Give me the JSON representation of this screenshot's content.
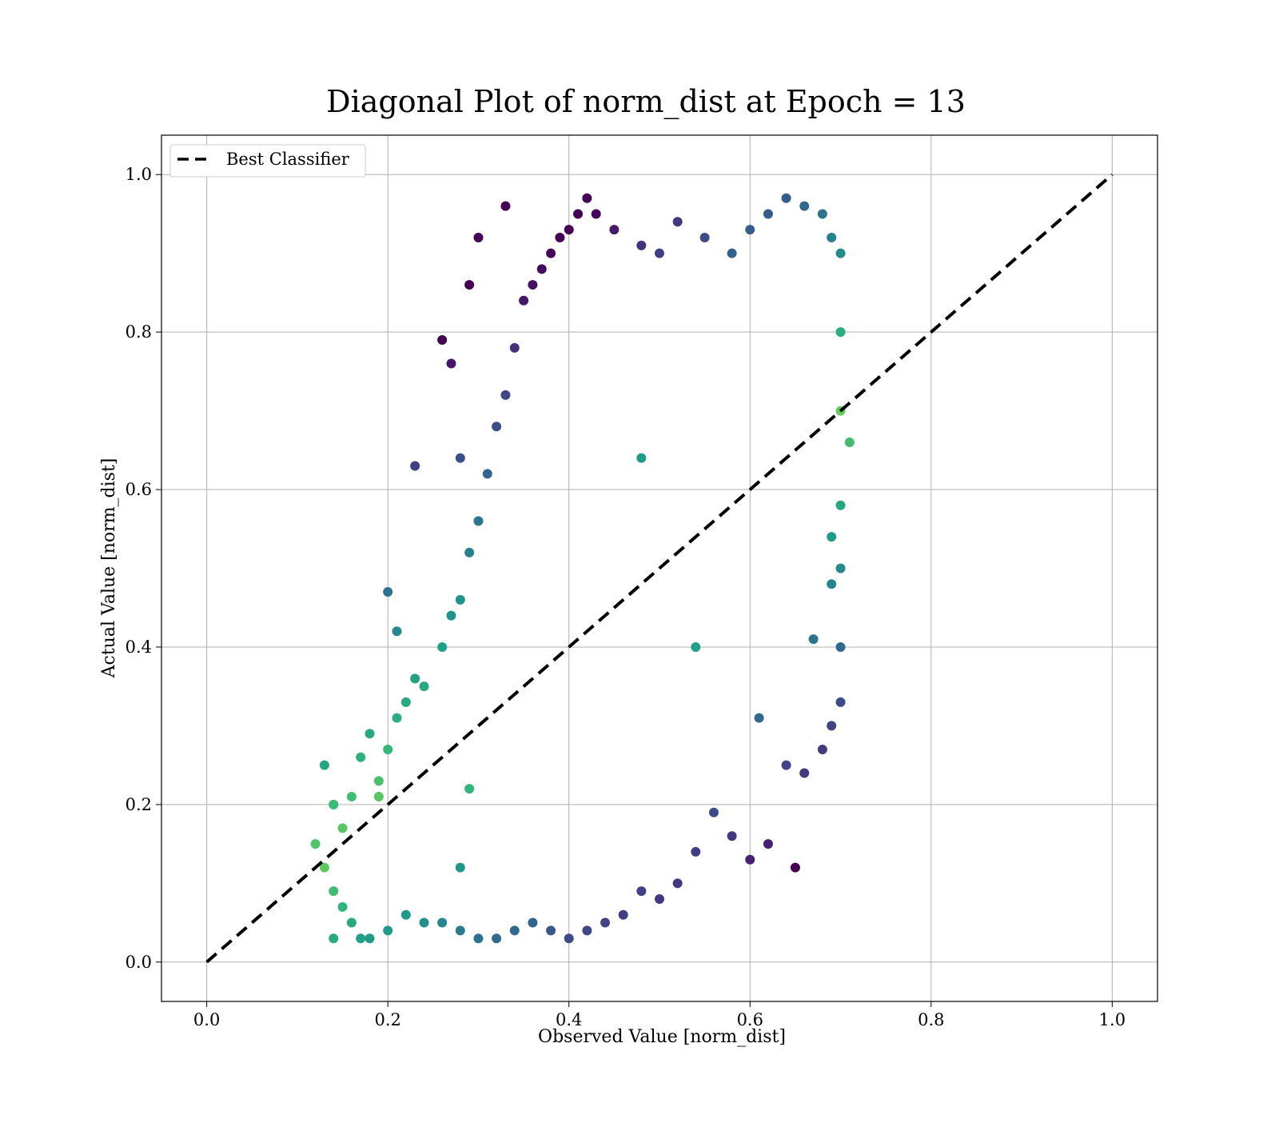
{
  "chart_data": {
    "type": "scatter",
    "title": "Diagonal Plot of norm_dist at Epoch = 13",
    "xlabel": "Observed Value [norm_dist]",
    "ylabel": "Actual Value [norm_dist]",
    "xlim": [
      -0.05,
      1.05
    ],
    "ylim": [
      -0.05,
      1.05
    ],
    "xticks": [
      "0.0",
      "0.2",
      "0.4",
      "0.6",
      "0.8",
      "1.0"
    ],
    "yticks": [
      "0.0",
      "0.2",
      "0.4",
      "0.6",
      "0.8",
      "1.0"
    ],
    "grid": true,
    "legend": {
      "position": "top-left",
      "entries": [
        "Best Classifier"
      ]
    },
    "colormap": "viridis",
    "series": [
      {
        "name": "Best Classifier",
        "type": "line",
        "style": "dashed",
        "color": "#000000",
        "x": [
          0.0,
          1.0
        ],
        "y": [
          0.0,
          1.0
        ]
      },
      {
        "type": "scatter",
        "colormap": "viridis",
        "points": [
          [
            0.13,
            0.25
          ],
          [
            0.14,
            0.2
          ],
          [
            0.15,
            0.17
          ],
          [
            0.16,
            0.21
          ],
          [
            0.17,
            0.26
          ],
          [
            0.18,
            0.29
          ],
          [
            0.19,
            0.23
          ],
          [
            0.2,
            0.27
          ],
          [
            0.21,
            0.31
          ],
          [
            0.22,
            0.33
          ],
          [
            0.23,
            0.36
          ],
          [
            0.24,
            0.35
          ],
          [
            0.26,
            0.4
          ],
          [
            0.27,
            0.44
          ],
          [
            0.28,
            0.46
          ],
          [
            0.29,
            0.52
          ],
          [
            0.3,
            0.56
          ],
          [
            0.31,
            0.62
          ],
          [
            0.32,
            0.68
          ],
          [
            0.33,
            0.72
          ],
          [
            0.34,
            0.78
          ],
          [
            0.35,
            0.84
          ],
          [
            0.36,
            0.86
          ],
          [
            0.37,
            0.88
          ],
          [
            0.38,
            0.9
          ],
          [
            0.39,
            0.92
          ],
          [
            0.4,
            0.93
          ],
          [
            0.41,
            0.95
          ],
          [
            0.42,
            0.97
          ],
          [
            0.43,
            0.95
          ],
          [
            0.45,
            0.93
          ],
          [
            0.48,
            0.91
          ],
          [
            0.5,
            0.9
          ],
          [
            0.52,
            0.94
          ],
          [
            0.55,
            0.92
          ],
          [
            0.58,
            0.9
          ],
          [
            0.6,
            0.93
          ],
          [
            0.62,
            0.95
          ],
          [
            0.64,
            0.97
          ],
          [
            0.66,
            0.96
          ],
          [
            0.68,
            0.95
          ],
          [
            0.69,
            0.92
          ],
          [
            0.7,
            0.9
          ],
          [
            0.7,
            0.8
          ],
          [
            0.7,
            0.7
          ],
          [
            0.71,
            0.66
          ],
          [
            0.7,
            0.58
          ],
          [
            0.7,
            0.5
          ],
          [
            0.7,
            0.4
          ],
          [
            0.7,
            0.33
          ],
          [
            0.69,
            0.3
          ],
          [
            0.68,
            0.27
          ],
          [
            0.66,
            0.24
          ],
          [
            0.65,
            0.12
          ],
          [
            0.62,
            0.15
          ],
          [
            0.6,
            0.13
          ],
          [
            0.58,
            0.16
          ],
          [
            0.56,
            0.19
          ],
          [
            0.54,
            0.14
          ],
          [
            0.52,
            0.1
          ],
          [
            0.5,
            0.08
          ],
          [
            0.48,
            0.09
          ],
          [
            0.46,
            0.06
          ],
          [
            0.44,
            0.05
          ],
          [
            0.42,
            0.04
          ],
          [
            0.4,
            0.03
          ],
          [
            0.38,
            0.04
          ],
          [
            0.36,
            0.05
          ],
          [
            0.34,
            0.04
          ],
          [
            0.32,
            0.03
          ],
          [
            0.3,
            0.03
          ],
          [
            0.28,
            0.04
          ],
          [
            0.26,
            0.05
          ],
          [
            0.24,
            0.05
          ],
          [
            0.22,
            0.06
          ],
          [
            0.2,
            0.04
          ],
          [
            0.18,
            0.03
          ],
          [
            0.17,
            0.03
          ],
          [
            0.16,
            0.05
          ],
          [
            0.15,
            0.07
          ],
          [
            0.14,
            0.09
          ],
          [
            0.13,
            0.12
          ],
          [
            0.12,
            0.15
          ],
          [
            0.14,
            0.03
          ],
          [
            0.2,
            0.47
          ],
          [
            0.21,
            0.42
          ],
          [
            0.23,
            0.63
          ],
          [
            0.26,
            0.79
          ],
          [
            0.27,
            0.76
          ],
          [
            0.29,
            0.86
          ],
          [
            0.33,
            0.96
          ],
          [
            0.3,
            0.92
          ],
          [
            0.28,
            0.64
          ],
          [
            0.48,
            0.64
          ],
          [
            0.54,
            0.4
          ],
          [
            0.69,
            0.54
          ],
          [
            0.69,
            0.48
          ],
          [
            0.67,
            0.41
          ],
          [
            0.61,
            0.31
          ],
          [
            0.64,
            0.25
          ],
          [
            0.29,
            0.22
          ],
          [
            0.28,
            0.12
          ],
          [
            0.19,
            0.21
          ],
          [
            0.14,
            0.2
          ]
        ]
      }
    ]
  }
}
